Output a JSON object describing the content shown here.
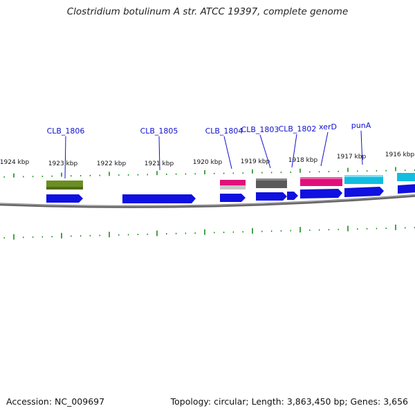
{
  "title": "Clostridium botulinum A str. ATCC 19397, complete genome",
  "accession_text": "Accession: NC_009697",
  "summary_text": "Topology: circular; Length: 3,863,450 bp; Genes: 3,656",
  "colors": {
    "backbone": "#7a7a7a",
    "ticks": "#1a8a1a",
    "label_text": "#1010cc",
    "cds": "#1010e0",
    "gene_olive": "#6b8e23",
    "gene_magenta": "#e0107a",
    "gene_gray": "#5a5a5a",
    "gene_cyan": "#12bde0"
  },
  "scale": {
    "unit": "kbp",
    "ticks": [
      {
        "label": "1924 kbp"
      },
      {
        "label": "1923 kbp"
      },
      {
        "label": "1922 kbp"
      },
      {
        "label": "1921 kbp"
      },
      {
        "label": "1920 kbp"
      },
      {
        "label": "1919 kbp"
      },
      {
        "label": "1918 kbp"
      },
      {
        "label": "1917 kbp"
      },
      {
        "label": "1916 kbp"
      }
    ]
  },
  "gene_labels": [
    {
      "name": "CLB_1806"
    },
    {
      "name": "CLB_1805"
    },
    {
      "name": "CLB_1804"
    },
    {
      "name": "CLB_1803"
    },
    {
      "name": "CLB_1802"
    },
    {
      "name": "xerD"
    },
    {
      "name": "punA"
    }
  ]
}
